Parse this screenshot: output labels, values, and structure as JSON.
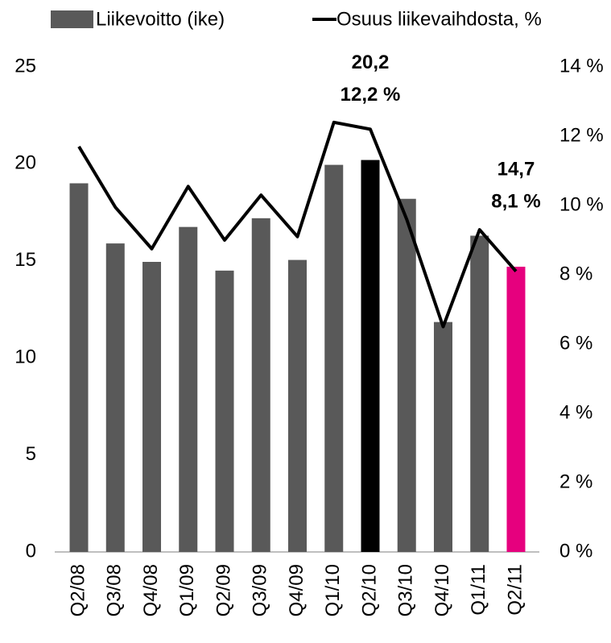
{
  "chart_data": {
    "type": "bar_line",
    "categories": [
      "Q2/08",
      "Q3/08",
      "Q4/08",
      "Q1/09",
      "Q2/09",
      "Q3/09",
      "Q4/09",
      "Q1/10",
      "Q2/10",
      "Q3/10",
      "Q4/10",
      "Q1/11",
      "Q2/11"
    ],
    "series": [
      {
        "name": "Liikevoitto (ike)",
        "type": "bar",
        "color": "#595959",
        "colors": [
          "#595959",
          "#595959",
          "#595959",
          "#595959",
          "#595959",
          "#595959",
          "#595959",
          "#595959",
          "#000000",
          "#595959",
          "#595959",
          "#595959",
          "#e6007e"
        ],
        "values": [
          19.0,
          15.9,
          14.95,
          16.75,
          14.5,
          17.2,
          15.05,
          19.95,
          20.2,
          18.2,
          11.85,
          16.3,
          14.7
        ],
        "value_labels": [
          null,
          null,
          null,
          null,
          null,
          null,
          null,
          null,
          "20,2",
          null,
          null,
          null,
          "14,7"
        ]
      },
      {
        "name": "Osuus liikevaihdosta, %",
        "type": "line",
        "axis": "y2",
        "color": "#000000",
        "values": [
          11.7,
          9.95,
          8.75,
          10.55,
          9.0,
          10.3,
          9.1,
          12.4,
          12.2,
          9.6,
          6.5,
          9.3,
          8.1
        ],
        "value_labels": [
          null,
          null,
          null,
          null,
          null,
          null,
          null,
          null,
          "12,2 %",
          null,
          null,
          null,
          "8,1 %"
        ]
      }
    ],
    "ylim": [
      0,
      25
    ],
    "yticks": [
      0,
      5,
      10,
      15,
      20,
      25
    ],
    "y2lim": [
      0,
      14
    ],
    "y2ticks": [
      {
        "value": 0,
        "label": "0 %"
      },
      {
        "value": 2,
        "label": "2 %"
      },
      {
        "value": 4,
        "label": "4 %"
      },
      {
        "value": 6,
        "label": "6 %"
      },
      {
        "value": 8,
        "label": "8 %"
      },
      {
        "value": 10,
        "label": "10 %"
      },
      {
        "value": 12,
        "label": "12 %"
      },
      {
        "value": 14,
        "label": "14 %"
      }
    ],
    "legend": "top"
  }
}
